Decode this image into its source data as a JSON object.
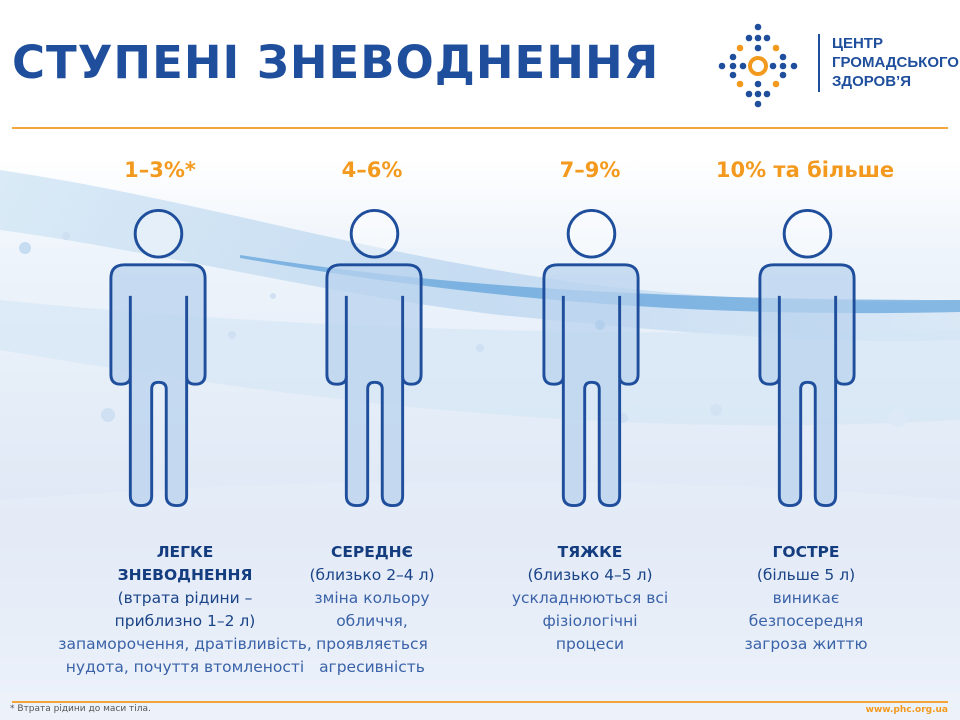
{
  "title": "СТУПЕНІ ЗНЕВОДНЕННЯ",
  "logo": {
    "lines": [
      "ЦЕНТР",
      "ГРОМАДСЬКОГО",
      "ЗДОРОВ’Я"
    ]
  },
  "colors": {
    "brand_blue": "#1f4f9c",
    "accent_orange": "#f39a1e",
    "figure_fill": "#b9d3ee"
  },
  "stages": [
    {
      "percent": "1–3%*",
      "heading": [
        "ЛЕГКЕ",
        "ЗНЕВОДНЕННЯ"
      ],
      "volume": [
        "(втрата рідини –",
        "приблизно 1–2 л)"
      ],
      "symptoms": [
        "запаморочення, дратівливість,",
        "нудота, почуття втомленості"
      ]
    },
    {
      "percent": "4–6%",
      "heading": [
        "СЕРЕДНЄ"
      ],
      "volume": [
        "(близько 2–4 л)"
      ],
      "symptoms": [
        "зміна кольору",
        "обличчя,",
        "проявляється",
        "агресивність"
      ]
    },
    {
      "percent": "7–9%",
      "heading": [
        "ТЯЖКЕ"
      ],
      "volume": [
        "(близько 4–5 л)"
      ],
      "symptoms": [
        "ускладнюються всі",
        "фізіологічні",
        "процеси"
      ]
    },
    {
      "percent": "10% та більше",
      "heading": [
        "ГОСТРЕ"
      ],
      "volume": [
        "(більше 5 л)"
      ],
      "symptoms": [
        "виникає",
        "безпосередня",
        "загроза життю"
      ]
    }
  ],
  "footnote": "* Втрата рідини до маси тіла.",
  "website": "www.phc.org.ua"
}
